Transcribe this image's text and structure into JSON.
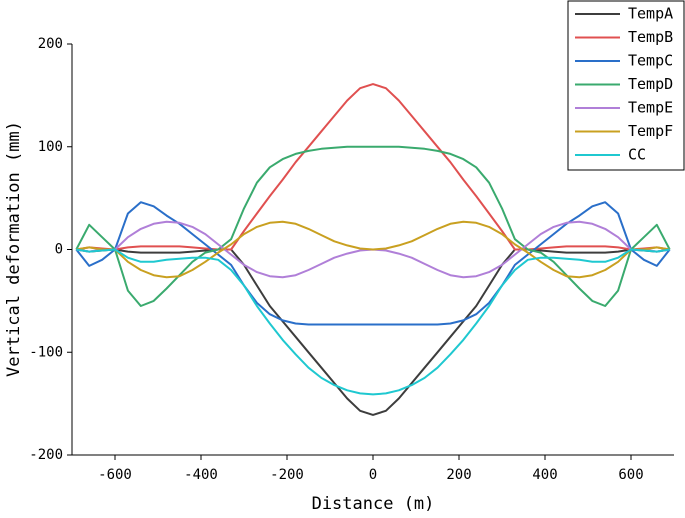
{
  "chart_data": {
    "type": "line",
    "x_label": "Distance (m)",
    "y_label": "Vertical deformation (mm)",
    "x": [
      -690,
      -660,
      -630,
      -600,
      -570,
      -540,
      -510,
      -480,
      -450,
      -420,
      -390,
      -360,
      -330,
      -300,
      -270,
      -240,
      -210,
      -180,
      -150,
      -120,
      -90,
      -60,
      -30,
      0,
      30,
      60,
      90,
      120,
      150,
      180,
      210,
      240,
      270,
      300,
      330,
      360,
      390,
      420,
      450,
      480,
      510,
      540,
      570,
      600,
      630,
      660,
      690
    ],
    "series": [
      {
        "name": "TempA",
        "color": "#3d3d3d",
        "values": [
          0,
          -2,
          -1,
          0,
          -2,
          -3,
          -3,
          -3,
          -3,
          -2,
          -1,
          0,
          0,
          -15,
          -35,
          -55,
          -70,
          -85,
          -100,
          -115,
          -130,
          -145,
          -157,
          -161,
          -157,
          -145,
          -130,
          -115,
          -100,
          -85,
          -70,
          -55,
          -35,
          -15,
          0,
          0,
          -1,
          -2,
          -3,
          -3,
          -3,
          -3,
          -2,
          0,
          -1,
          -2,
          0
        ]
      },
      {
        "name": "TempB",
        "color": "#e05050",
        "values": [
          0,
          2,
          1,
          0,
          2,
          3,
          3,
          3,
          3,
          2,
          1,
          0,
          0,
          18,
          35,
          52,
          68,
          85,
          100,
          115,
          130,
          145,
          157,
          161,
          157,
          145,
          130,
          115,
          100,
          85,
          68,
          52,
          35,
          18,
          0,
          0,
          1,
          2,
          3,
          3,
          3,
          3,
          2,
          0,
          1,
          2,
          0
        ]
      },
      {
        "name": "TempC",
        "color": "#2a6fc9",
        "values": [
          0,
          -16,
          -10,
          0,
          35,
          46,
          42,
          33,
          25,
          15,
          5,
          -5,
          -15,
          -35,
          -52,
          -63,
          -69,
          -72,
          -73,
          -73,
          -73,
          -73,
          -73,
          -73,
          -73,
          -73,
          -73,
          -73,
          -73,
          -72,
          -69,
          -63,
          -52,
          -35,
          -15,
          -5,
          5,
          15,
          25,
          33,
          42,
          46,
          35,
          0,
          -10,
          -16,
          0
        ]
      },
      {
        "name": "TempD",
        "color": "#3aaa6e",
        "values": [
          0,
          24,
          12,
          0,
          -40,
          -55,
          -50,
          -38,
          -25,
          -12,
          -3,
          0,
          10,
          40,
          65,
          80,
          88,
          93,
          96,
          98,
          99,
          100,
          100,
          100,
          100,
          100,
          99,
          98,
          96,
          93,
          88,
          80,
          65,
          40,
          10,
          0,
          -3,
          -12,
          -25,
          -38,
          -50,
          -55,
          -40,
          0,
          12,
          24,
          0
        ]
      },
      {
        "name": "TempE",
        "color": "#b07fd8",
        "values": [
          0,
          -2,
          0,
          0,
          12,
          20,
          25,
          27,
          26,
          22,
          15,
          5,
          -5,
          -15,
          -22,
          -26,
          -27,
          -25,
          -20,
          -14,
          -8,
          -4,
          -1,
          0,
          -1,
          -4,
          -8,
          -14,
          -20,
          -25,
          -27,
          -26,
          -22,
          -15,
          -5,
          5,
          15,
          22,
          26,
          27,
          25,
          20,
          12,
          0,
          0,
          -2,
          0
        ]
      },
      {
        "name": "TempF",
        "color": "#c9a020",
        "values": [
          0,
          2,
          0,
          0,
          -12,
          -20,
          -25,
          -27,
          -26,
          -20,
          -12,
          -3,
          5,
          15,
          22,
          26,
          27,
          25,
          20,
          14,
          8,
          4,
          1,
          0,
          1,
          4,
          8,
          14,
          20,
          25,
          27,
          26,
          22,
          15,
          5,
          -3,
          -12,
          -20,
          -26,
          -27,
          -25,
          -20,
          -12,
          0,
          0,
          2,
          0
        ]
      },
      {
        "name": "CC",
        "color": "#1fc8d0",
        "values": [
          0,
          -2,
          -1,
          0,
          -8,
          -12,
          -12,
          -10,
          -9,
          -8,
          -8,
          -10,
          -20,
          -35,
          -55,
          -72,
          -88,
          -102,
          -115,
          -125,
          -132,
          -137,
          -140,
          -141,
          -140,
          -137,
          -132,
          -125,
          -115,
          -102,
          -88,
          -72,
          -55,
          -35,
          -20,
          -10,
          -8,
          -8,
          -9,
          -10,
          -12,
          -12,
          -8,
          0,
          -1,
          -2,
          0
        ]
      }
    ],
    "xlim": [
      -700,
      700
    ],
    "ylim": [
      -200,
      200
    ],
    "xticks": [
      -600,
      -400,
      -200,
      0,
      200,
      400,
      600
    ],
    "yticks": [
      -200,
      -100,
      0,
      100,
      200
    ],
    "legend": "top-right"
  }
}
